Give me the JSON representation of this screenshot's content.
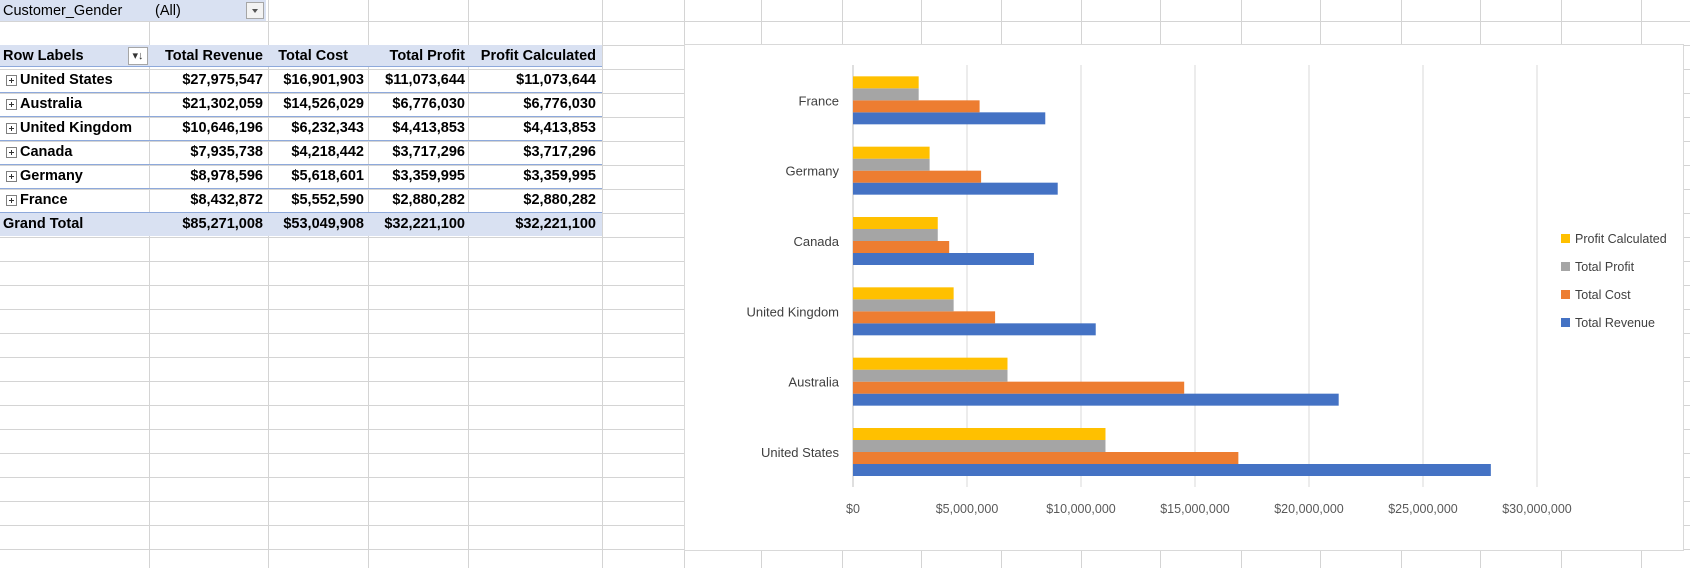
{
  "filter": {
    "field_label": "Customer_Gender",
    "value": "(All)"
  },
  "pivot": {
    "headers": [
      "Row Labels",
      "Total Revenue",
      "Total Cost",
      "Total Profit",
      "Profit Calculated"
    ],
    "rows": [
      {
        "label": "United States",
        "revenue": "$27,975,547",
        "cost": "$16,901,903",
        "profit": "$11,073,644",
        "calc": "$11,073,644"
      },
      {
        "label": "Australia",
        "revenue": "$21,302,059",
        "cost": "$14,526,029",
        "profit": "$6,776,030",
        "calc": "$6,776,030"
      },
      {
        "label": "United Kingdom",
        "revenue": "$10,646,196",
        "cost": "$6,232,343",
        "profit": "$4,413,853",
        "calc": "$4,413,853"
      },
      {
        "label": "Canada",
        "revenue": "$7,935,738",
        "cost": "$4,218,442",
        "profit": "$3,717,296",
        "calc": "$3,717,296"
      },
      {
        "label": "Germany",
        "revenue": "$8,978,596",
        "cost": "$5,618,601",
        "profit": "$3,359,995",
        "calc": "$3,359,995"
      },
      {
        "label": "France",
        "revenue": "$8,432,872",
        "cost": "$5,552,590",
        "profit": "$2,880,282",
        "calc": "$2,880,282"
      }
    ],
    "grand_total": {
      "label": "Grand Total",
      "revenue": "$85,271,008",
      "cost": "$53,049,908",
      "profit": "$32,221,100",
      "calc": "$32,221,100"
    }
  },
  "chart_data": {
    "type": "bar",
    "orientation": "horizontal",
    "categories": [
      "United States",
      "Australia",
      "United Kingdom",
      "Canada",
      "Germany",
      "France"
    ],
    "series": [
      {
        "name": "Total Revenue",
        "color": "#4472c4",
        "values": [
          27975547,
          21302059,
          10646196,
          7935738,
          8978596,
          8432872
        ]
      },
      {
        "name": "Total Cost",
        "color": "#ed7d31",
        "values": [
          16901903,
          14526029,
          6232343,
          4218442,
          5618601,
          5552590
        ]
      },
      {
        "name": "Total Profit",
        "color": "#a5a5a5",
        "values": [
          11073644,
          6776030,
          4413853,
          3717296,
          3359995,
          2880282
        ]
      },
      {
        "name": "Profit Calculated",
        "color": "#ffc000",
        "values": [
          11073644,
          6776030,
          4413853,
          3717296,
          3359995,
          2880282
        ]
      }
    ],
    "xlim": [
      0,
      30000000
    ],
    "x_ticks": [
      "$0",
      "$5,000,000",
      "$10,000,000",
      "$15,000,000",
      "$20,000,000",
      "$25,000,000",
      "$30,000,000"
    ],
    "legend_entries": [
      "Profit Calculated",
      "Total Profit",
      "Total Cost",
      "Total Revenue"
    ],
    "legend_position": "right",
    "gridlines": true
  },
  "colors": {
    "pivot_header_fill": "#d9e1f2",
    "pivot_line": "#8ea9db",
    "gridline": "#d4d4d4"
  },
  "icons": {
    "filter_dropdown": "chevron-down-icon",
    "sort_button": "sort-filter-icon",
    "expand": "expand-plus-icon"
  }
}
